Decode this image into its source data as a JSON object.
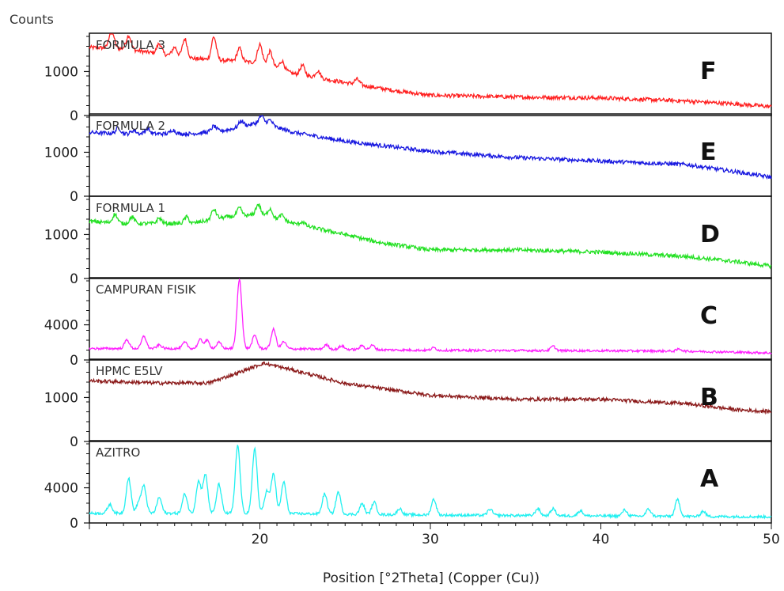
{
  "chart_data": {
    "type": "line",
    "ylabel": "Counts",
    "xlabel": "Position [°2Theta] (Copper (Cu))",
    "xlim": [
      10,
      50
    ],
    "xticks": [
      "20",
      "30",
      "40",
      "50"
    ],
    "grid": false,
    "legend": "none",
    "panels": [
      {
        "letter": "F",
        "name": "FORMULA 3",
        "color": "#ff2020",
        "ylim": [
          0,
          1800
        ],
        "yticks": [
          "0",
          "1000"
        ],
        "baseline": [
          [
            10,
            1550
          ],
          [
            12,
            1520
          ],
          [
            16,
            1300
          ],
          [
            20,
            1200
          ],
          [
            22,
            950
          ],
          [
            25,
            750
          ],
          [
            28,
            560
          ],
          [
            30,
            460
          ],
          [
            35,
            420
          ],
          [
            40,
            400
          ],
          [
            45,
            330
          ],
          [
            48,
            260
          ],
          [
            50,
            200
          ]
        ],
        "peaks": [
          [
            11.3,
            450
          ],
          [
            12.3,
            320
          ],
          [
            14.1,
            230
          ],
          [
            15.0,
            200
          ],
          [
            15.6,
            420
          ],
          [
            17.3,
            520
          ],
          [
            18.8,
            300
          ],
          [
            20.0,
            420
          ],
          [
            20.6,
            330
          ],
          [
            21.3,
            200
          ],
          [
            22.5,
            220
          ],
          [
            23.4,
            160
          ],
          [
            25.7,
            120
          ]
        ],
        "noise": 45
      },
      {
        "letter": "E",
        "name": "FORMULA 2",
        "color": "#1818e0",
        "ylim": [
          0,
          1800
        ],
        "yticks": [
          "0",
          "1000"
        ],
        "baseline": [
          [
            10,
            1450
          ],
          [
            12,
            1420
          ],
          [
            16,
            1420
          ],
          [
            18,
            1500
          ],
          [
            20,
            1680
          ],
          [
            22,
            1450
          ],
          [
            25,
            1250
          ],
          [
            30,
            1020
          ],
          [
            35,
            880
          ],
          [
            40,
            800
          ],
          [
            45,
            720
          ],
          [
            48,
            550
          ],
          [
            50,
            430
          ]
        ],
        "peaks": [
          [
            11.7,
            130
          ],
          [
            12.6,
            80
          ],
          [
            13.4,
            120
          ],
          [
            14.9,
            90
          ],
          [
            17.3,
            120
          ],
          [
            18.9,
            130
          ],
          [
            20.1,
            150
          ],
          [
            20.6,
            120
          ]
        ],
        "noise": 45
      },
      {
        "letter": "D",
        "name": "FORMULA 1",
        "color": "#22e022",
        "ylim": [
          0,
          1800
        ],
        "yticks": [
          "0",
          "1000"
        ],
        "baseline": [
          [
            10,
            1300
          ],
          [
            12,
            1250
          ],
          [
            16,
            1250
          ],
          [
            18,
            1400
          ],
          [
            20,
            1450
          ],
          [
            22,
            1250
          ],
          [
            25,
            1000
          ],
          [
            27,
            820
          ],
          [
            30,
            650
          ],
          [
            35,
            650
          ],
          [
            40,
            600
          ],
          [
            45,
            500
          ],
          [
            48,
            380
          ],
          [
            50,
            280
          ]
        ],
        "peaks": [
          [
            11.5,
            200
          ],
          [
            12.5,
            150
          ],
          [
            14.1,
            120
          ],
          [
            15.7,
            150
          ],
          [
            17.3,
            220
          ],
          [
            18.8,
            180
          ],
          [
            19.9,
            240
          ],
          [
            20.6,
            200
          ],
          [
            21.3,
            120
          ],
          [
            22.5,
            80
          ]
        ],
        "noise": 45
      },
      {
        "letter": "C",
        "name": "CAMPURAN FISIK",
        "color": "#ff20ff",
        "ylim": [
          0,
          9000
        ],
        "yticks": [
          "0",
          "4000"
        ],
        "baseline": [
          [
            10,
            1300
          ],
          [
            20,
            1300
          ],
          [
            30,
            1100
          ],
          [
            40,
            1050
          ],
          [
            45,
            1000
          ],
          [
            50,
            800
          ]
        ],
        "peaks": [
          [
            12.2,
            1000
          ],
          [
            13.2,
            1400
          ],
          [
            14.1,
            400
          ],
          [
            15.6,
            700
          ],
          [
            16.5,
            1000
          ],
          [
            16.9,
            900
          ],
          [
            17.6,
            700
          ],
          [
            18.8,
            7900
          ],
          [
            19.7,
            1500
          ],
          [
            20.8,
            2200
          ],
          [
            21.4,
            800
          ],
          [
            23.9,
            500
          ],
          [
            24.8,
            400
          ],
          [
            26.0,
            450
          ],
          [
            26.6,
            500
          ],
          [
            30.2,
            300
          ],
          [
            37.2,
            500
          ],
          [
            44.6,
            250
          ]
        ],
        "noise": 130
      },
      {
        "letter": "B",
        "name": "HPMC E5LV",
        "color": "#8b1a1a",
        "ylim": [
          0,
          1800
        ],
        "yticks": [
          "0",
          "1000"
        ],
        "baseline": [
          [
            10,
            1380
          ],
          [
            14,
            1330
          ],
          [
            17,
            1330
          ],
          [
            19,
            1600
          ],
          [
            20.2,
            1780
          ],
          [
            22,
            1620
          ],
          [
            25,
            1320
          ],
          [
            30,
            1050
          ],
          [
            35,
            960
          ],
          [
            40,
            960
          ],
          [
            45,
            860
          ],
          [
            48,
            720
          ],
          [
            50,
            680
          ]
        ],
        "peaks": [],
        "noise": 40
      },
      {
        "letter": "A",
        "name": "AZITRO",
        "color": "#20f0f0",
        "ylim": [
          0,
          9000
        ],
        "yticks": [
          "0",
          "4000"
        ],
        "baseline": [
          [
            10,
            1100
          ],
          [
            20,
            1100
          ],
          [
            30,
            900
          ],
          [
            40,
            800
          ],
          [
            45,
            750
          ],
          [
            50,
            700
          ]
        ],
        "peaks": [
          [
            11.2,
            1000
          ],
          [
            12.3,
            4000
          ],
          [
            12.9,
            1200
          ],
          [
            13.2,
            3000
          ],
          [
            14.1,
            1800
          ],
          [
            15.6,
            2200
          ],
          [
            16.4,
            3600
          ],
          [
            16.8,
            4400
          ],
          [
            17.6,
            3300
          ],
          [
            18.7,
            7700
          ],
          [
            19.7,
            7400
          ],
          [
            20.4,
            2500
          ],
          [
            20.8,
            4500
          ],
          [
            21.4,
            3600
          ],
          [
            23.8,
            2300
          ],
          [
            24.6,
            2500
          ],
          [
            26.0,
            1200
          ],
          [
            26.7,
            1400
          ],
          [
            28.2,
            700
          ],
          [
            30.2,
            1800
          ],
          [
            33.5,
            700
          ],
          [
            36.3,
            800
          ],
          [
            37.2,
            800
          ],
          [
            38.8,
            600
          ],
          [
            41.4,
            700
          ],
          [
            42.8,
            800
          ],
          [
            44.5,
            1900
          ],
          [
            46.0,
            600
          ]
        ],
        "noise": 150
      }
    ]
  }
}
